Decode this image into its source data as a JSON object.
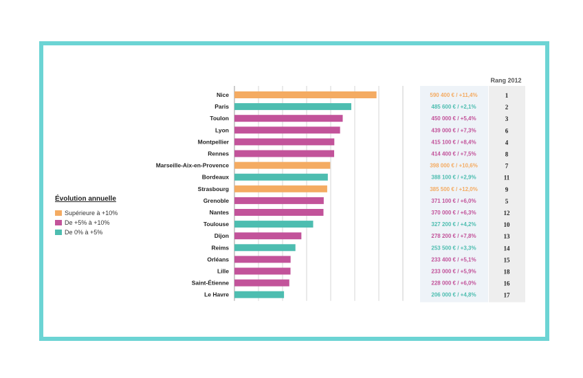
{
  "legend": {
    "title": "Évolution annuelle",
    "items": [
      {
        "label": "Supérieure à +10%",
        "color": "#f4ab62"
      },
      {
        "label": "De +5% à +10%",
        "color": "#c2539a"
      },
      {
        "label": "De 0% à +5%",
        "color": "#4dbdb0"
      }
    ]
  },
  "chart_data": {
    "type": "bar",
    "orientation": "horizontal",
    "title": "",
    "xlabel": "",
    "ylabel": "",
    "xlim": [
      0,
      600000
    ],
    "grid": true,
    "legend_position": "left",
    "rank_header": "Rang 2012",
    "categories": [
      "Nice",
      "Paris",
      "Toulon",
      "Lyon",
      "Montpellier",
      "Rennes",
      "Marseille-Aix-en-Provence",
      "Bordeaux",
      "Strasbourg",
      "Grenoble",
      "Nantes",
      "Toulouse",
      "Dijon",
      "Reims",
      "Orléans",
      "Lille",
      "Saint-Étienne",
      "Le Havre"
    ],
    "values": [
      590400,
      485600,
      450000,
      439000,
      415100,
      414400,
      398000,
      388100,
      385500,
      371100,
      370000,
      327200,
      278200,
      253500,
      233400,
      233000,
      228000,
      206000
    ],
    "groups": [
      "Supérieure à +10%",
      "De 0% à +5%",
      "De +5% à +10%",
      "De +5% à +10%",
      "De +5% à +10%",
      "De +5% à +10%",
      "Supérieure à +10%",
      "De 0% à +5%",
      "Supérieure à +10%",
      "De +5% à +10%",
      "De +5% à +10%",
      "De 0% à +5%",
      "De +5% à +10%",
      "De 0% à +5%",
      "De +5% à +10%",
      "De +5% à +10%",
      "De +5% à +10%",
      "De 0% à +5%"
    ],
    "value_labels": [
      "590 400 € / +11,4%",
      "485 600 € / +2,1%",
      "450 000 € / +5,4%",
      "439 000 € / +7,3%",
      "415 100 € / +8,4%",
      "414 400 € / +7,5%",
      "398 000 € / +10,6%",
      "388 100 € / +2,9%",
      "385 500 € / +12,0%",
      "371 100 € / +6,0%",
      "370 000 € / +6,3%",
      "327 200 € / +4,2%",
      "278 200 € / +7,8%",
      "253 500 € / +3,3%",
      "233 400 € / +5,1%",
      "233 000 € / +5,9%",
      "228 000 € / +6,0%",
      "206 000 € / +4,8%"
    ],
    "rank_2012": [
      "1",
      "2",
      "3",
      "6",
      "4",
      "8",
      "7",
      "11",
      "9",
      "5",
      "12",
      "10",
      "13",
      "14",
      "15",
      "18",
      "16",
      "17"
    ]
  }
}
